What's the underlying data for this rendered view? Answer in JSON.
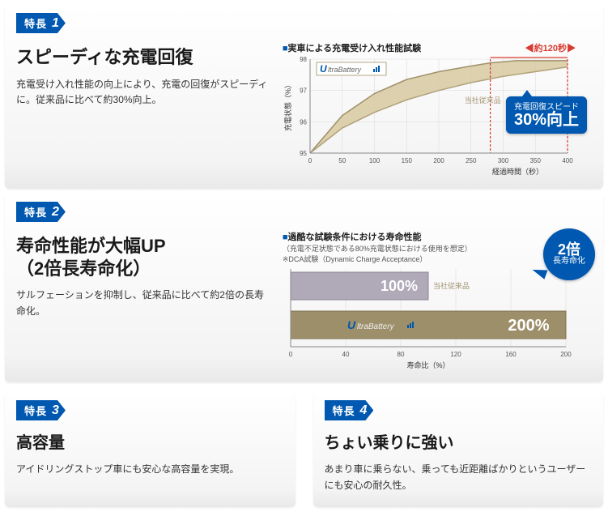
{
  "colors": {
    "brand_blue": "#0058b0",
    "red": "#d83a2f",
    "ultra_fill": "#d7c9a0",
    "ultra_stroke": "#a0916b",
    "conventional_stroke": "#b0a27a",
    "axis": "#888888",
    "grid": "#dddddd",
    "bar1_fill": "#b0a9b8",
    "bar1_stroke": "#8b8496",
    "bar2_fill": "#9d8f6a",
    "bar2_stroke": "#7f7352",
    "text_dark": "#1a1a1a"
  },
  "feature1": {
    "badge_label": "特長",
    "badge_num": "1",
    "title": "スピーディな充電回復",
    "body": "充電受け入れ性能の向上により、充電の回復がスピーディに。従来品に比べて約30%向上。",
    "chart_title": "実車による充電受け入れ性能試験",
    "red_annotation": "約120秒",
    "ylabel": "充電状態（%）",
    "xlabel": "経過時間（秒）",
    "legend_conv": "当社従来品",
    "logo_u": "U",
    "logo_rest": "ltraBattery",
    "ylim": [
      95,
      98
    ],
    "yticks": [
      95,
      96,
      97,
      98
    ],
    "xlim": [
      0,
      400
    ],
    "xticks": [
      0,
      50,
      100,
      150,
      200,
      250,
      300,
      350,
      400
    ],
    "ultra_curve": [
      [
        0,
        95
      ],
      [
        50,
        96.2
      ],
      [
        100,
        96.9
      ],
      [
        150,
        97.35
      ],
      [
        200,
        97.6
      ],
      [
        250,
        97.78
      ],
      [
        280,
        97.88
      ],
      [
        320,
        97.95
      ],
      [
        400,
        97.95
      ]
    ],
    "conv_curve": [
      [
        0,
        95
      ],
      [
        50,
        95.8
      ],
      [
        100,
        96.3
      ],
      [
        150,
        96.7
      ],
      [
        200,
        97.0
      ],
      [
        250,
        97.25
      ],
      [
        300,
        97.45
      ],
      [
        350,
        97.6
      ],
      [
        400,
        97.75
      ]
    ],
    "callout_line1": "充電回復スピード",
    "callout_line2": "30%向上"
  },
  "feature2": {
    "badge_label": "特長",
    "badge_num": "2",
    "title": "寿命性能が大幅UP\n（2倍長寿命化）",
    "body": "サルフェーションを抑制し、従来品に比べて約2倍の長寿命化。",
    "chart_title": "過酷な試験条件における寿命性能",
    "chart_sub": "（充電不足状態である80%充電状態における使用を想定）",
    "chart_note": "※DCA試験（Dynamic Charge Acceptance）",
    "xlabel": "寿命比（%）",
    "xlim": [
      0,
      200
    ],
    "xticks": [
      0,
      40,
      80,
      120,
      160,
      200
    ],
    "bar1_value": 100,
    "bar1_label": "100%",
    "bar1_legend": "当社従来品",
    "bar2_value": 200,
    "bar2_label": "200%",
    "logo_u": "U",
    "logo_rest": "ltraBattery",
    "circle_line1": "2倍",
    "circle_line2": "長寿命化"
  },
  "feature3": {
    "badge_label": "特長",
    "badge_num": "3",
    "title": "高容量",
    "body": "アイドリングストップ車にも安心な高容量を実現。"
  },
  "feature4": {
    "badge_label": "特長",
    "badge_num": "4",
    "title": "ちょい乗りに強い",
    "body": "あまり車に乗らない、乗っても近距離ばかりというユーザーにも安心の耐久性。"
  }
}
